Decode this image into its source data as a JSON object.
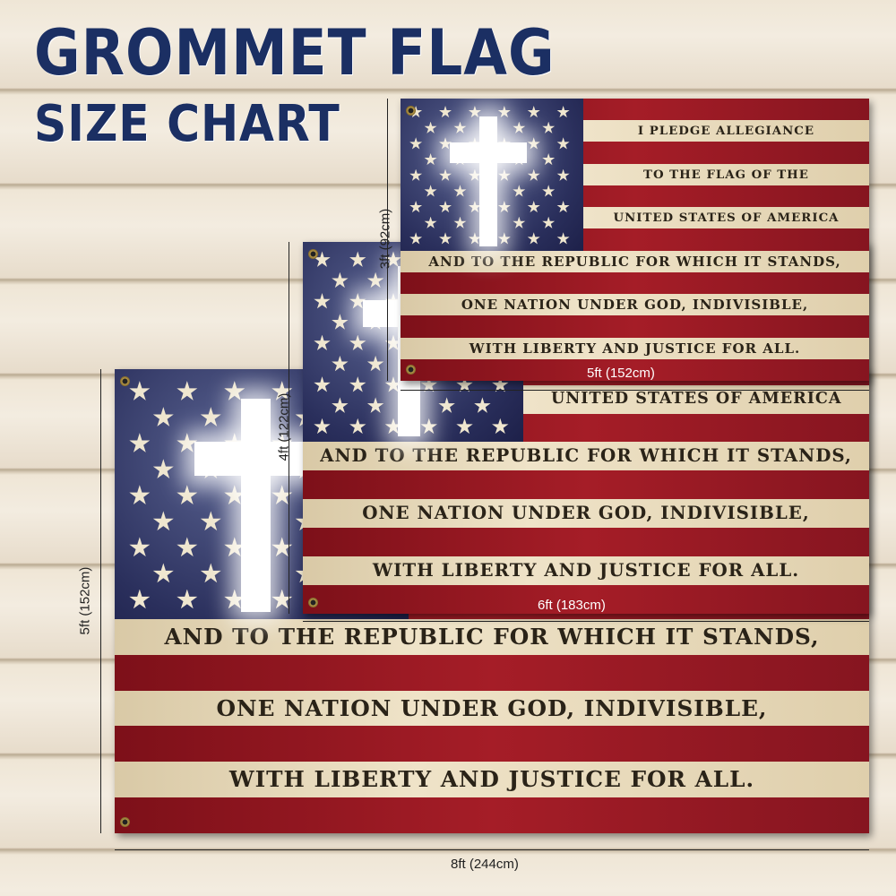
{
  "title": {
    "line1": "GROMMET FLAG",
    "line2": "SIZE CHART"
  },
  "colors": {
    "title": "#1b2f63",
    "red": "#9c1a24",
    "cream": "#e9dcc0",
    "navy": "#2a2f5c"
  },
  "pledge_lines": [
    "I PLEDGE ALLEGIANCE",
    "TO THE FLAG OF THE",
    "UNITED STATES OF AMERICA",
    "AND TO THE REPUBLIC FOR WHICH IT STANDS,",
    "ONE NATION UNDER GOD, INDIVISIBLE,",
    "WITH LIBERTY AND JUSTICE FOR ALL."
  ],
  "sizes": [
    {
      "height_label": "3ft (92cm)",
      "width_label": "5ft (152cm)"
    },
    {
      "height_label": "4ft (122cm)",
      "width_label": "6ft (183cm)"
    },
    {
      "height_label": "5ft (152cm)",
      "width_label": "8ft (244cm)"
    }
  ]
}
